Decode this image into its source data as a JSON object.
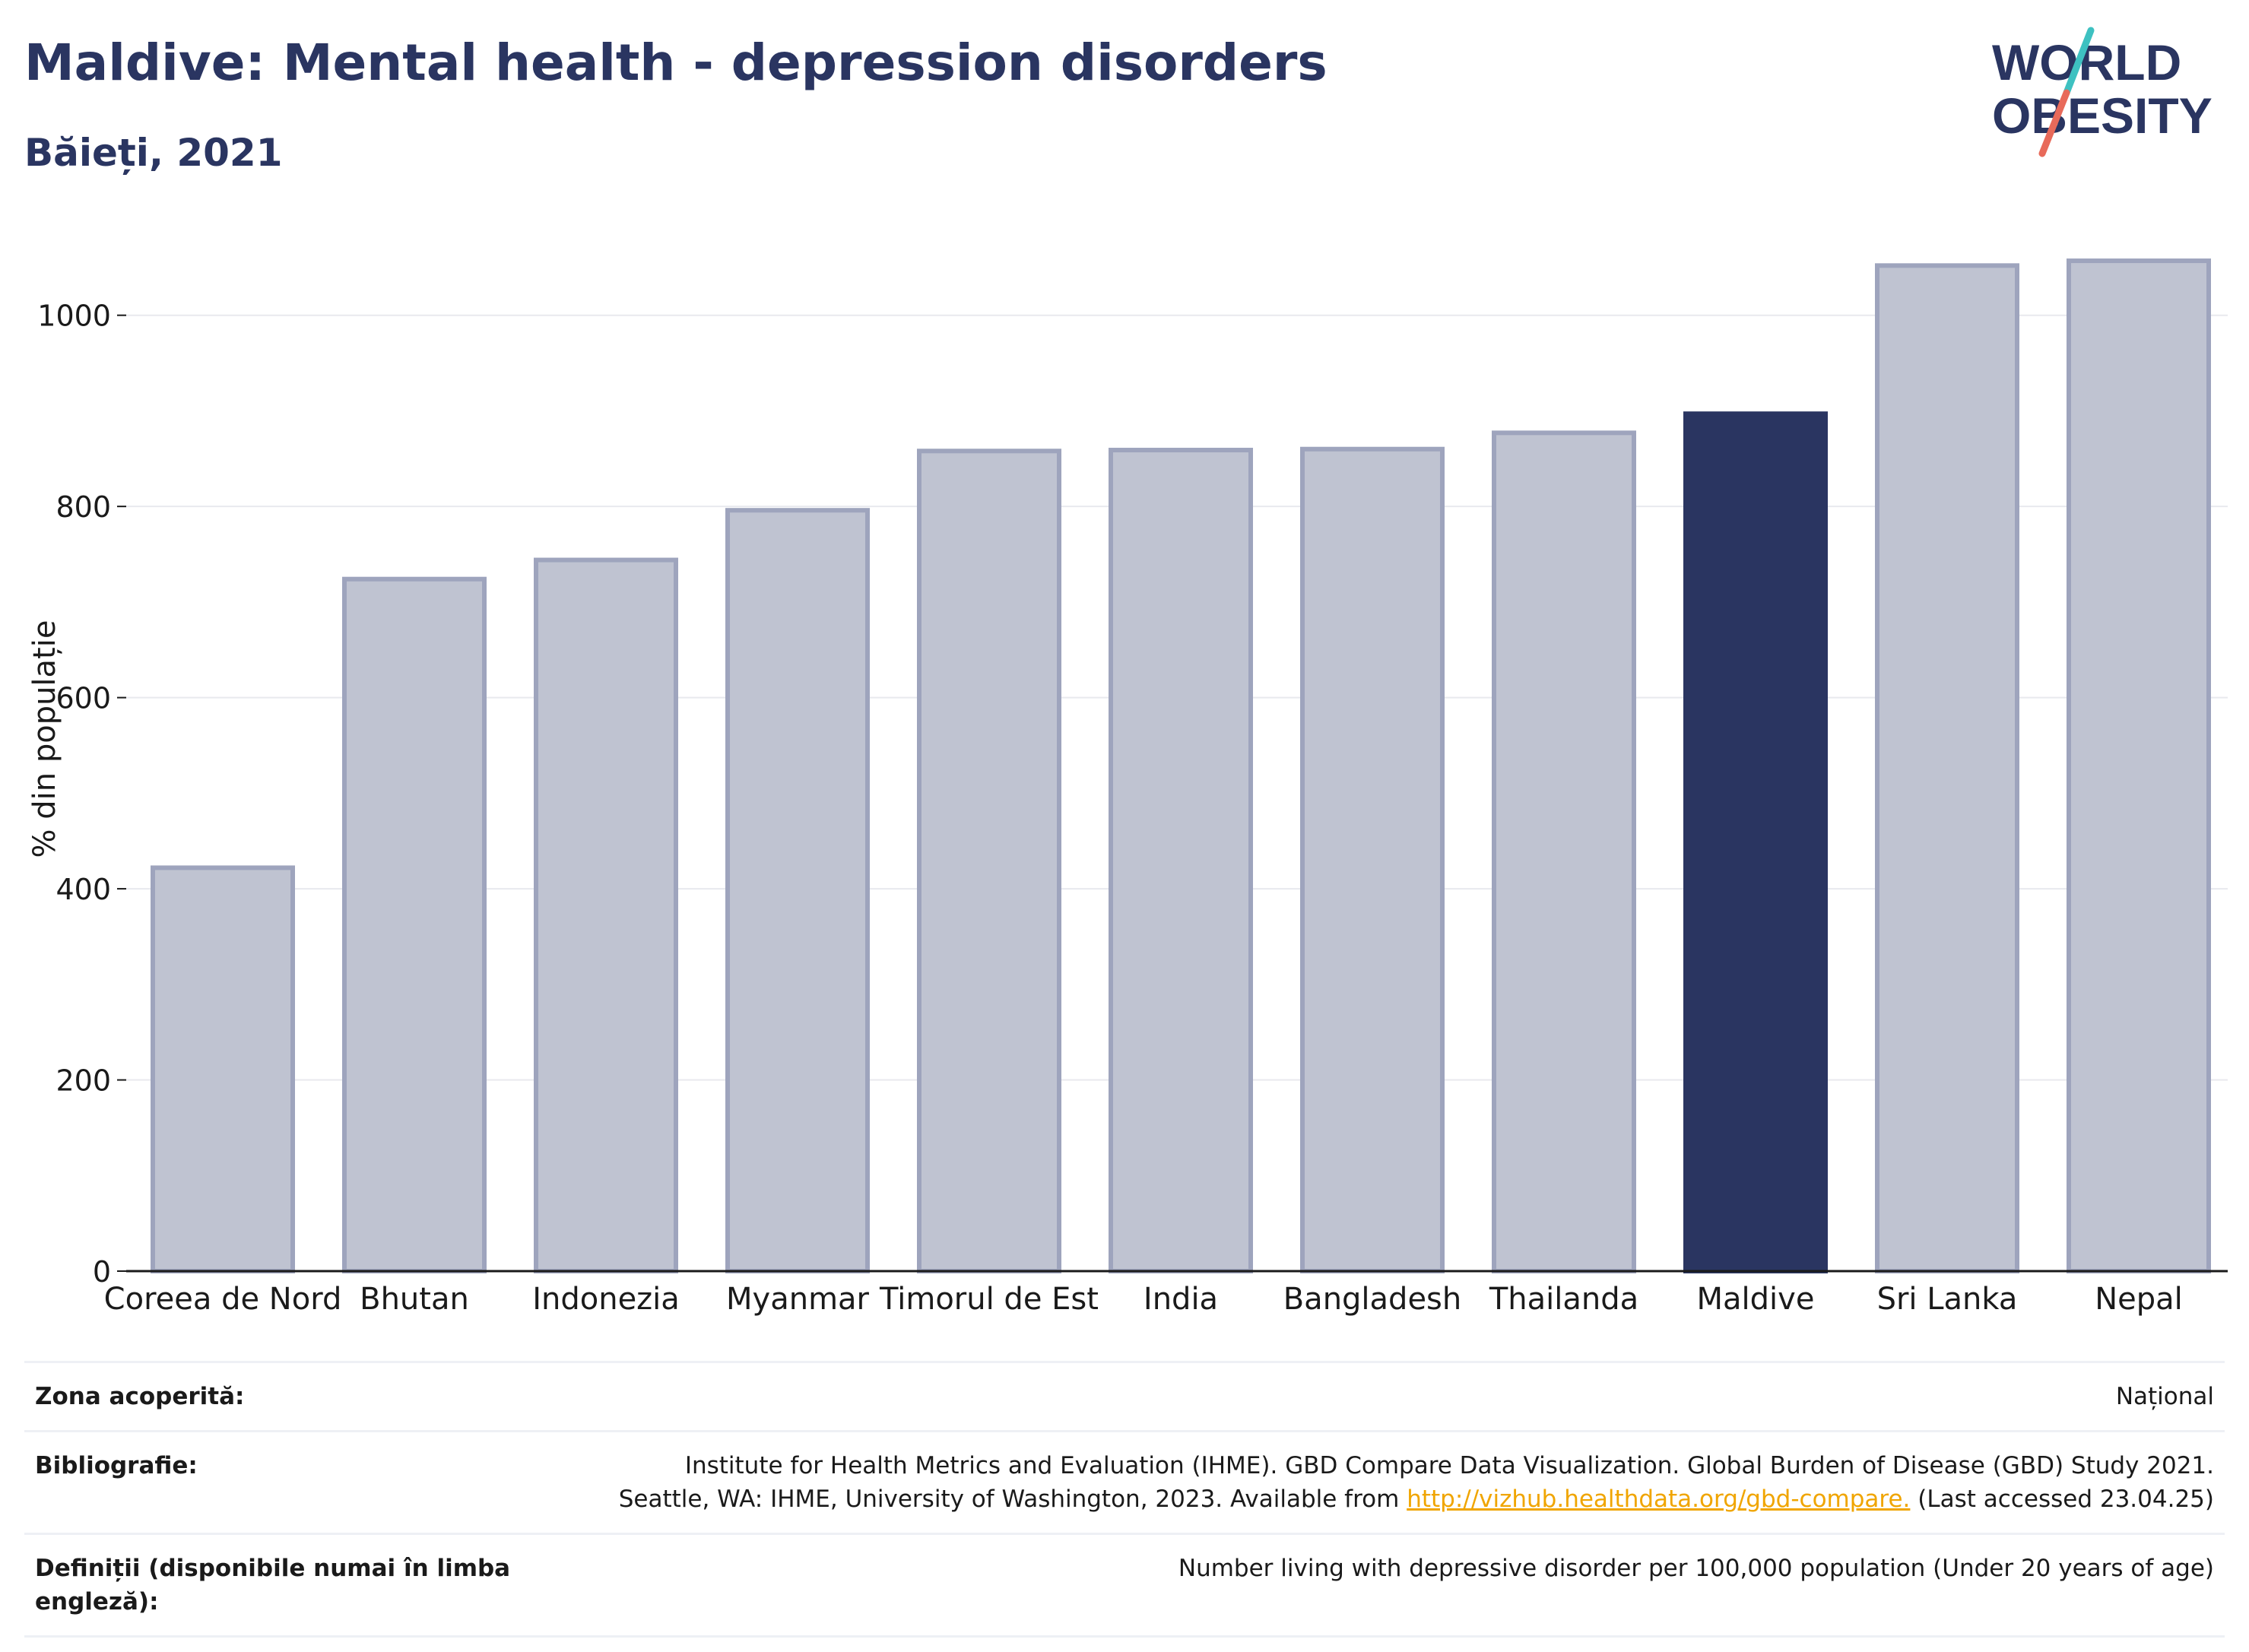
{
  "header": {
    "title": "Maldive: Mental health - depression disorders",
    "subtitle": "Băieți, 2021"
  },
  "logo": {
    "line1": "WORLD",
    "line2": "OBESITY"
  },
  "colors": {
    "highlight": "#2a3561",
    "bar_fill": "#bfc3d1",
    "bar_stroke": "#9ea4bd",
    "link": "#f0a500",
    "logo_teal": "#3ec1c1",
    "logo_coral": "#e86a5a"
  },
  "chart_data": {
    "type": "bar",
    "title": "Maldive: Mental health - depression disorders",
    "subtitle": "Băieți, 2021",
    "ylabel": "% din populație",
    "xlabel": "",
    "ylim": [
      0,
      1100
    ],
    "yticks": [
      0,
      200,
      400,
      600,
      800,
      1000
    ],
    "grid": true,
    "highlight": "Maldive",
    "categories": [
      "Coreea de Nord",
      "Bhutan",
      "Indonezia",
      "Myanmar",
      "Timorul de Est",
      "India",
      "Bangladesh",
      "Thailanda",
      "Maldive",
      "Sri Lanka",
      "Nepal"
    ],
    "values": [
      422,
      724,
      744,
      796,
      858,
      859,
      860,
      877,
      897,
      1052,
      1057
    ]
  },
  "info": {
    "coverage_label": "Zona acoperită:",
    "coverage_value": "Național",
    "bibliography_label": "Bibliografie:",
    "bibliography_line1": "Institute for Health Metrics and Evaluation (IHME). GBD Compare Data Visualization. Global Burden of Disease (GBD) Study 2021.",
    "bibliography_line2_prefix": "Seattle, WA: IHME, University of Washington, 2023. Available from ",
    "bibliography_link": "http://vizhub.healthdata.org/gbd-compare.",
    "bibliography_line2_suffix": " (Last accessed 23.04.25)",
    "definitions_label": "Definiții (disponibile numai în limba engleză):",
    "definitions_value": "Number living with depressive disorder per 100,000 population (Under 20 years of age)"
  }
}
